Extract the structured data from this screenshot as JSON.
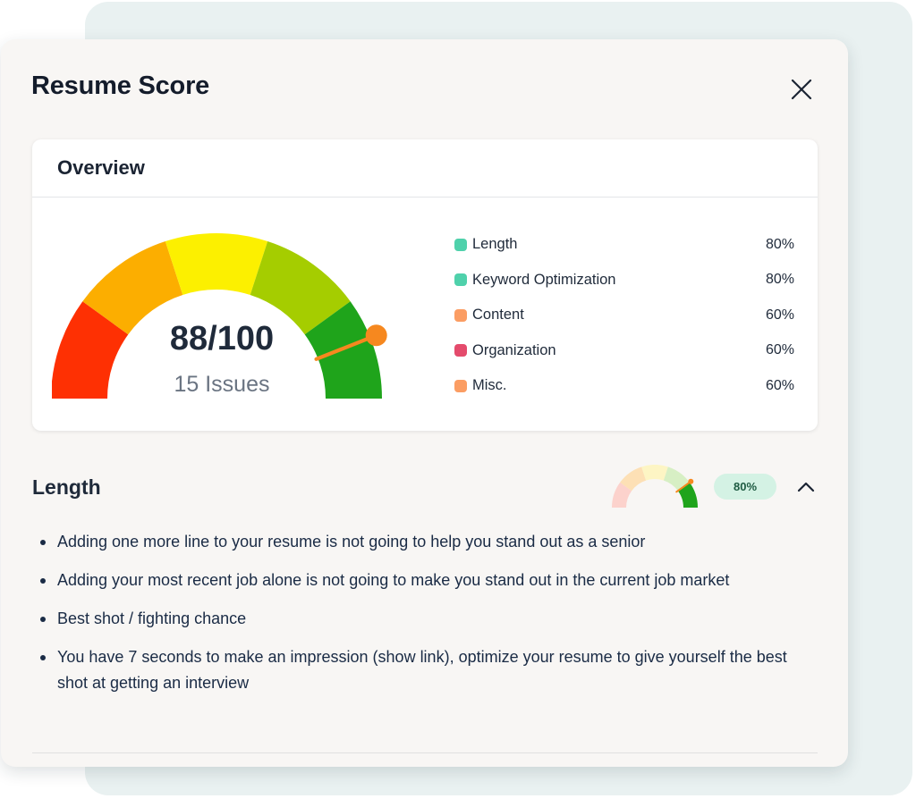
{
  "panel": {
    "title": "Resume Score",
    "close_icon": "close-icon"
  },
  "overview": {
    "title": "Overview",
    "score": "88/100",
    "issues": "15 Issues",
    "score_fraction": 0.88,
    "gauge_colors": [
      "#fe3003",
      "#fcae00",
      "#fcf000",
      "#a5cd00",
      "#1fa41b"
    ],
    "needle_color": "#f6881f",
    "legend": [
      {
        "label": "Length",
        "value": "80%",
        "color": "#4fd1ab"
      },
      {
        "label": "Keyword Optimization",
        "value": "80%",
        "color": "#4fd1ab"
      },
      {
        "label": "Content",
        "value": "60%",
        "color": "#fb9d63"
      },
      {
        "label": "Organization",
        "value": "60%",
        "color": "#e44b6c"
      },
      {
        "label": "Misc.",
        "value": "60%",
        "color": "#fb9d63"
      }
    ]
  },
  "section": {
    "title": "Length",
    "score_label": "80%",
    "score_fraction": 0.8,
    "mini_gauge_colors": [
      "#fcd2cc",
      "#fde0b5",
      "#fdf5c4",
      "#d7efc4",
      "#1fa41b"
    ],
    "chevron_icon": "chevron-up-icon",
    "tips": [
      "Adding one more line to your resume is not going to help you stand out as a senior",
      "Adding your most recent job alone is not going to make you stand out in the current job market",
      "Best shot / fighting chance",
      "You have 7 seconds to make an impression (show link), optimize your resume to give yourself the best shot at getting an interview"
    ]
  }
}
